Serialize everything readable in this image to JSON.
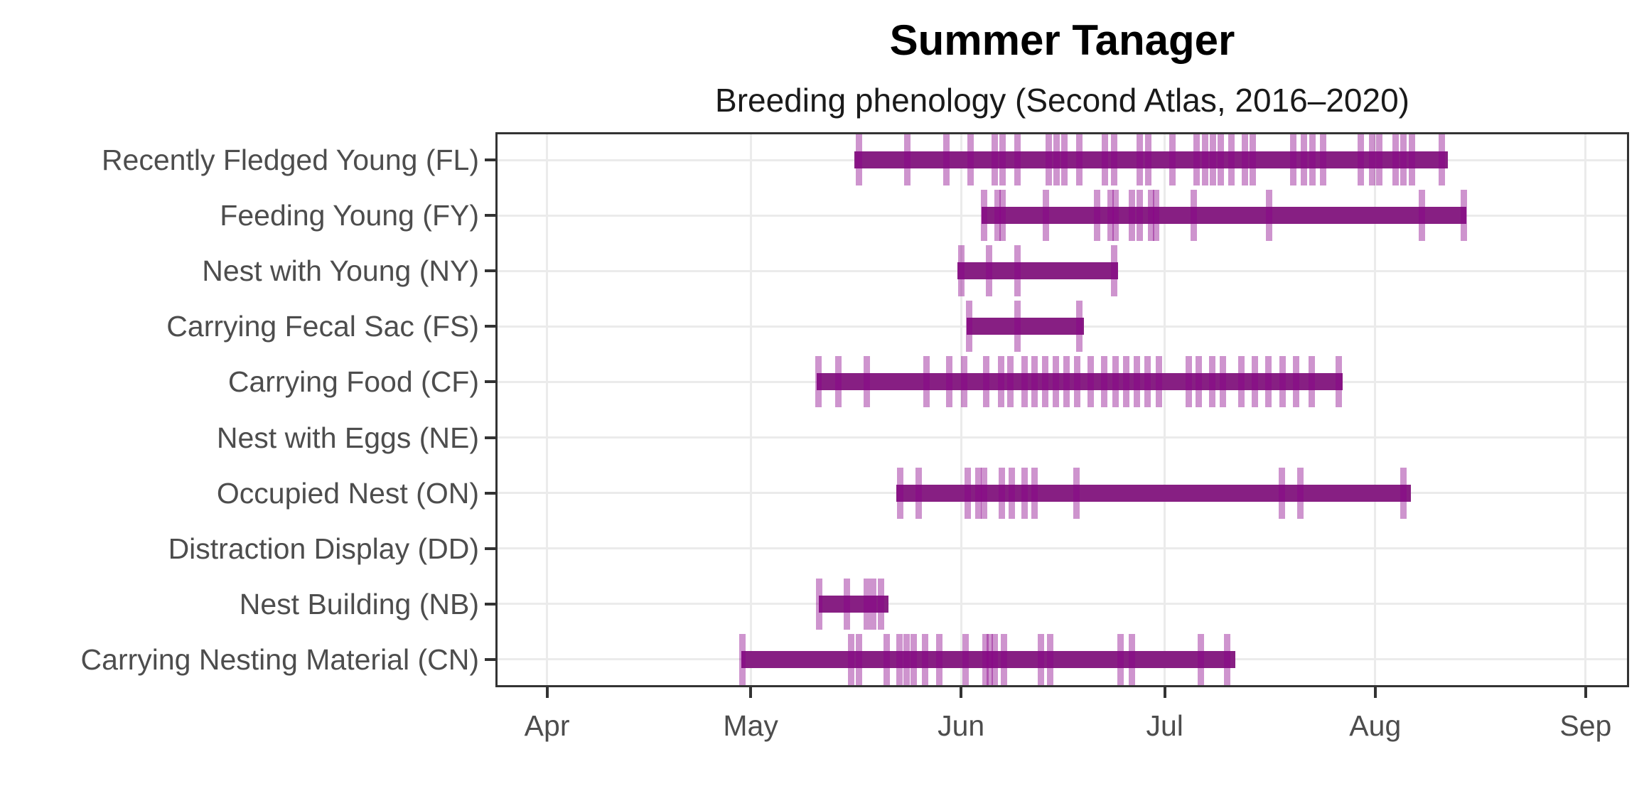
{
  "title": "Summer Tanager",
  "subtitle": "Breeding phenology (Second Atlas, 2016–2020)",
  "chart_data": {
    "type": "bar",
    "variant": "horizontal-range-bars-with-observation-tick-marks (breeding phenology gantt)",
    "title": "Summer Tanager",
    "subtitle": "Breeding phenology (Second Atlas, 2016–2020)",
    "legend": "none",
    "grid": true,
    "x_axis": {
      "unit": "date (day 0 = Apr 1)",
      "domain_days": [
        -7.6,
        159.4
      ],
      "ticks": [
        {
          "label": "Apr",
          "day": 0
        },
        {
          "label": "May",
          "day": 30
        },
        {
          "label": "Jun",
          "day": 61
        },
        {
          "label": "Jul",
          "day": 91
        },
        {
          "label": "Aug",
          "day": 122
        },
        {
          "label": "Sep",
          "day": 153
        }
      ]
    },
    "y_axis": {
      "categories_top_to_bottom": [
        "Recently Fledged Young (FL)",
        "Feeding Young (FY)",
        "Nest with Young (NY)",
        "Carrying Fecal Sac (FS)",
        "Carrying Food (CF)",
        "Nest with Eggs (NE)",
        "Occupied Nest (ON)",
        "Distraction Display (DD)",
        "Nest Building (NB)",
        "Carrying Nesting Material (CN)"
      ]
    },
    "style": {
      "bar_color": "#871f83",
      "observation_tick_base_color": "#8b008b",
      "observation_tick_alpha": 0.42,
      "grid_color": "#ebebeb",
      "panel_border_color": "#333333",
      "axis_text_color": "#4d4d4d",
      "title_color": "#000000"
    },
    "series": [
      {
        "label": "Recently Fledged Young (FL)",
        "code": "FL",
        "start_day": 45.3,
        "end_day": 132.7,
        "start_date": "May 16",
        "end_date": "Aug 12",
        "observation_days": [
          46.0,
          53.1,
          58.8,
          62.4,
          66.0,
          67.1,
          69.3,
          73.9,
          75.1,
          76.2,
          78.4,
          82.2,
          83.5,
          87.3,
          88.6,
          92.1,
          95.7,
          96.9,
          98.1,
          99.3,
          100.8,
          102.8,
          104.0,
          109.9,
          111.5,
          112.8,
          114.3,
          119.9,
          121.5,
          122.6,
          125.0,
          126.2,
          127.4,
          131.8
        ]
      },
      {
        "label": "Feeding Young (FY)",
        "code": "FY",
        "start_day": 64.0,
        "end_day": 135.4,
        "start_date": "Jun 4",
        "end_date": "Aug 14",
        "observation_days": [
          64.4,
          66.4,
          67.1,
          73.5,
          81.0,
          83.0,
          83.8,
          86.2,
          87.3,
          89.0,
          89.7,
          95.3,
          106.4,
          128.9,
          135.1
        ]
      },
      {
        "label": "Nest with Young (NY)",
        "code": "NY",
        "start_day": 60.5,
        "end_day": 84.1,
        "start_date": "May 31",
        "end_date": "Jun 24",
        "observation_days": [
          61.0,
          65.1,
          69.3,
          83.5
        ]
      },
      {
        "label": "Carrying Fecal Sac (FS)",
        "code": "FS",
        "start_day": 61.8,
        "end_day": 79.1,
        "start_date": "Jun 2",
        "end_date": "Jun 19",
        "observation_days": [
          62.2,
          69.3,
          78.4
        ]
      },
      {
        "label": "Carrying Food (CF)",
        "code": "CF",
        "start_day": 39.7,
        "end_day": 117.2,
        "start_date": "May 11",
        "end_date": "Jul 27",
        "observation_days": [
          40.0,
          42.9,
          47.1,
          55.9,
          59.2,
          61.5,
          64.7,
          66.9,
          68.3,
          70.3,
          71.8,
          73.4,
          75.0,
          76.5,
          78.1,
          80.1,
          82.1,
          83.8,
          85.3,
          86.9,
          88.5,
          90.1,
          94.5,
          96.0,
          98.0,
          99.6,
          102.3,
          104.3,
          106.3,
          108.4,
          110.3,
          112.7,
          116.6
        ]
      },
      {
        "label": "Nest with Eggs (NE)",
        "code": "NE",
        "start_day": null,
        "end_day": null,
        "start_date": null,
        "end_date": null,
        "observation_days": []
      },
      {
        "label": "Occupied Nest (ON)",
        "code": "ON",
        "start_day": 51.4,
        "end_day": 127.3,
        "start_date": "May 22",
        "end_date": "Aug 6",
        "observation_days": [
          52.0,
          54.8,
          62.0,
          63.5,
          64.4,
          67.0,
          68.5,
          70.3,
          71.8,
          78.0,
          108.3,
          111.0,
          126.2
        ]
      },
      {
        "label": "Distraction Display (DD)",
        "code": "DD",
        "start_day": null,
        "end_day": null,
        "start_date": null,
        "end_date": null,
        "observation_days": []
      },
      {
        "label": "Nest Building (NB)",
        "code": "NB",
        "start_day": 40.0,
        "end_day": 50.3,
        "start_date": "May 11",
        "end_date": "May 21",
        "observation_days": [
          40.1,
          44.2,
          47.1,
          48.0,
          49.2
        ]
      },
      {
        "label": "Carrying Nesting Material (CN)",
        "code": "CN",
        "start_day": 28.6,
        "end_day": 101.4,
        "start_date": "Apr 30",
        "end_date": "Jul 11",
        "observation_days": [
          28.8,
          44.8,
          46.0,
          50.0,
          51.9,
          53.0,
          54.0,
          55.7,
          57.8,
          61.7,
          64.6,
          65.2,
          66.0,
          67.3,
          72.8,
          74.1,
          84.5,
          86.2,
          96.3,
          100.2
        ]
      }
    ]
  }
}
